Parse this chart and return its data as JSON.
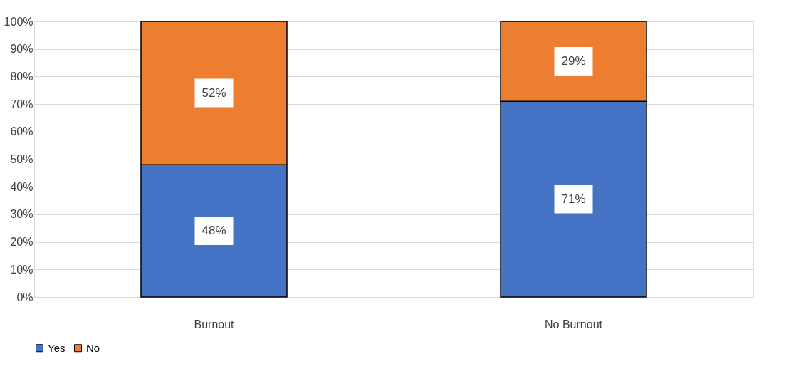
{
  "chart_data": {
    "type": "bar",
    "stacked": true,
    "categories": [
      "Burnout",
      "No Burnout"
    ],
    "series": [
      {
        "name": "Yes",
        "color": "#4472c4",
        "values": [
          48,
          71
        ],
        "value_labels": [
          "48%",
          "71%"
        ]
      },
      {
        "name": "No",
        "color": "#ed7d31",
        "values": [
          52,
          29
        ],
        "value_labels": [
          "52%",
          "29%"
        ]
      }
    ],
    "ylim": [
      0,
      100
    ],
    "yticks": [
      {
        "value": 0,
        "label": "0%"
      },
      {
        "value": 10,
        "label": "10%"
      },
      {
        "value": 20,
        "label": "20%"
      },
      {
        "value": 30,
        "label": "30%"
      },
      {
        "value": 40,
        "label": "40%"
      },
      {
        "value": 50,
        "label": "50%"
      },
      {
        "value": 60,
        "label": "60%"
      },
      {
        "value": 70,
        "label": "70%"
      },
      {
        "value": 80,
        "label": "80%"
      },
      {
        "value": 90,
        "label": "90%"
      },
      {
        "value": 100,
        "label": "100%"
      }
    ],
    "grid": "y",
    "legend": "bottom"
  }
}
